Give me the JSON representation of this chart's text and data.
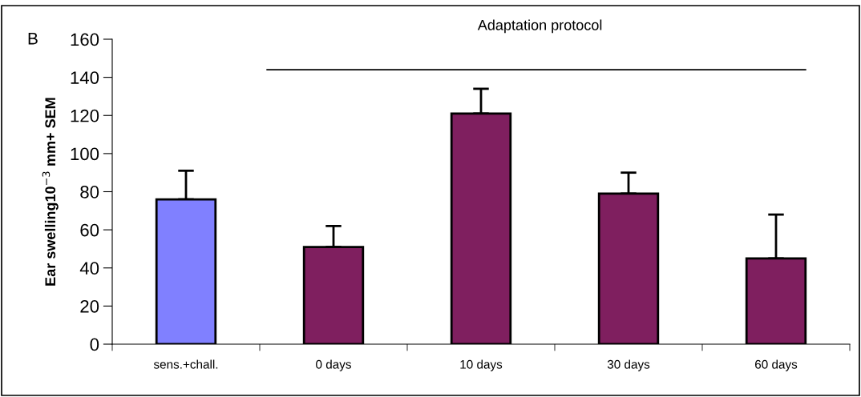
{
  "chart_data": {
    "type": "bar",
    "ylabel": "Ear swelling10$^{−3}$ mm+ SEM",
    "categories": [
      "sens.+chall.",
      "0 days",
      "10 days",
      "30 days",
      "60 days"
    ],
    "values": [
      76,
      51,
      121,
      79,
      45
    ],
    "colors": [
      "#8080ff",
      "#7f1f5f",
      "#7f1f5f",
      "#7f1f5f",
      "#7f1f5f"
    ],
    "errors": [
      [
        76,
        91
      ],
      [
        51,
        62
      ],
      [
        121,
        134
      ],
      [
        79,
        90
      ],
      [
        45,
        68
      ]
    ],
    "ylim": [
      0,
      160
    ],
    "yticks": [
      0,
      20,
      40,
      60,
      80,
      100,
      120,
      140,
      160
    ],
    "annotations": [
      "B"
    ],
    "ref_lines": [
      {
        "axis": "y",
        "value": 144,
        "label": "Adaptation protocol",
        "color": "#000000"
      }
    ],
    "grid": false,
    "legend": false
  }
}
